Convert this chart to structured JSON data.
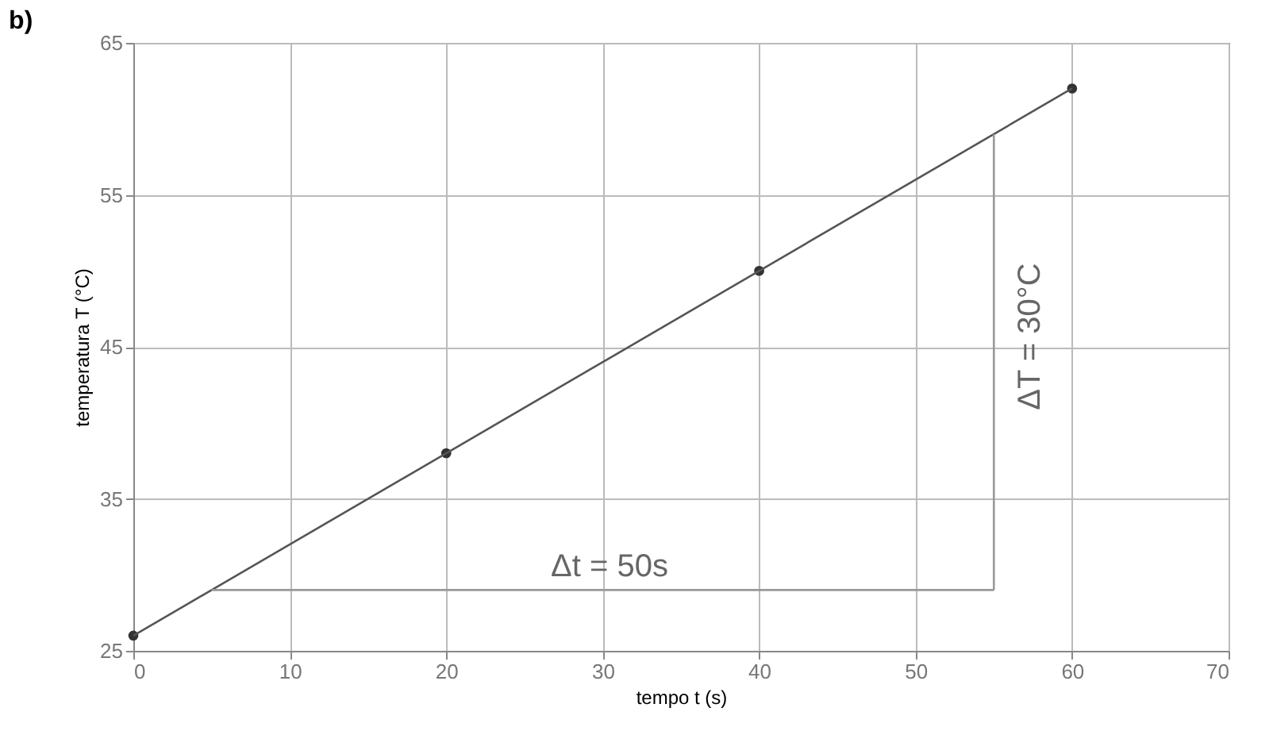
{
  "chart_data": {
    "type": "scatter",
    "title": "b)",
    "xlabel": "tempo t (s)",
    "ylabel": "temperatura T (°C)",
    "x": [
      0,
      20,
      40,
      60
    ],
    "series": [
      {
        "color": "#333333",
        "values": [
          26,
          38,
          50,
          62
        ],
        "marker": "circle"
      },
      {
        "type": "line",
        "color": "#555555",
        "x": [
          0,
          60
        ],
        "values": [
          26,
          62
        ],
        "marker": "none",
        "line_style": "solid"
      },
      {
        "type": "line",
        "color": "#999999",
        "x": [
          5,
          55
        ],
        "values": [
          29,
          29
        ],
        "marker": "none",
        "line_style": "solid"
      },
      {
        "type": "line",
        "color": "#999999",
        "x": [
          55,
          55
        ],
        "values": [
          29,
          59
        ],
        "marker": "none",
        "line_style": "solid"
      }
    ],
    "annotations": [
      "Δt = 50s",
      "ΔT = 30°C"
    ],
    "xlim": [
      0,
      70
    ],
    "xticks": [
      0,
      10,
      20,
      30,
      40,
      50,
      60,
      70
    ],
    "ylim": [
      25,
      65
    ],
    "yticks": [
      25,
      35,
      45,
      55,
      65
    ],
    "grid": true
  }
}
